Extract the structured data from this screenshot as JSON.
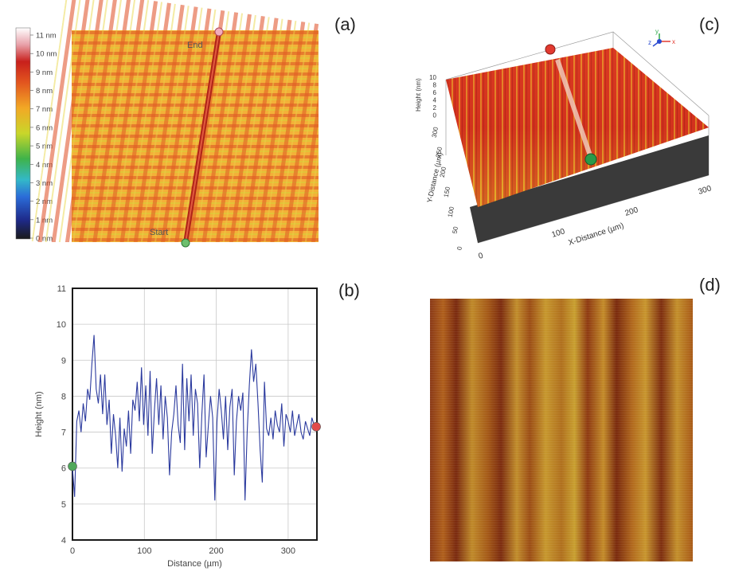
{
  "panel_labels": {
    "a": "(a)",
    "b": "(b)",
    "c": "(c)",
    "d": "(d)"
  },
  "colorbar": {
    "ticks": [
      "11 nm",
      "10 nm",
      "9 nm",
      "8 nm",
      "7 nm",
      "6 nm",
      "5 nm",
      "4 nm",
      "3 nm",
      "2 nm",
      "1 nm",
      "0 nm"
    ]
  },
  "height_map": {
    "start_label": "Start",
    "end_label": "End"
  },
  "view3d": {
    "z_label": "Height (nm)",
    "z_ticks": [
      "10",
      "8",
      "6",
      "4",
      "2",
      "0"
    ],
    "y_label": "Y-Distance (µm)",
    "y_ticks": [
      "300",
      "250",
      "200",
      "150",
      "100",
      "50",
      "0"
    ],
    "x_label": "X-Distance (µm)",
    "x_ticks": [
      "0",
      "100",
      "200",
      "300"
    ],
    "axis_x": "x",
    "axis_y": "y",
    "axis_z": "z"
  },
  "chart_data": {
    "type": "line",
    "xlabel": "Distance (µm)",
    "ylabel": "Height (nm)",
    "xlim": [
      0,
      340
    ],
    "ylim": [
      4,
      11
    ],
    "xticks": [
      0,
      100,
      200,
      300
    ],
    "yticks": [
      4,
      5,
      6,
      7,
      8,
      9,
      10,
      11
    ],
    "grid": true,
    "series": [
      {
        "color": "#2b3a9e",
        "x": [
          0,
          3,
          6,
          9,
          12,
          15,
          18,
          21,
          24,
          27,
          30,
          33,
          36,
          39,
          42,
          45,
          48,
          51,
          54,
          57,
          60,
          63,
          66,
          69,
          72,
          75,
          78,
          81,
          84,
          87,
          90,
          93,
          96,
          99,
          102,
          105,
          108,
          111,
          114,
          117,
          120,
          123,
          126,
          129,
          132,
          135,
          138,
          141,
          144,
          147,
          150,
          153,
          156,
          159,
          162,
          165,
          168,
          171,
          174,
          177,
          180,
          183,
          186,
          189,
          192,
          195,
          198,
          201,
          204,
          207,
          210,
          213,
          216,
          219,
          222,
          225,
          228,
          231,
          234,
          237,
          240,
          243,
          246,
          249,
          252,
          255,
          258,
          261,
          264,
          267,
          270,
          273,
          276,
          279,
          282,
          285,
          288,
          291,
          294,
          297,
          300,
          303,
          306,
          309,
          312,
          315,
          318,
          321,
          324,
          327,
          330,
          333,
          336,
          339
        ],
        "y": [
          6.0,
          5.2,
          7.3,
          7.6,
          7.0,
          7.8,
          7.3,
          8.2,
          7.9,
          8.9,
          9.7,
          8.2,
          7.8,
          8.6,
          7.5,
          8.6,
          7.2,
          7.9,
          6.4,
          7.5,
          6.9,
          6.0,
          7.4,
          5.9,
          7.1,
          6.6,
          7.6,
          6.4,
          7.9,
          7.6,
          8.4,
          7.3,
          8.8,
          7.2,
          8.3,
          6.9,
          8.7,
          6.4,
          7.6,
          8.5,
          7.2,
          8.3,
          6.8,
          8.0,
          7.4,
          5.8,
          7.0,
          7.5,
          8.3,
          7.2,
          6.7,
          8.9,
          6.5,
          8.5,
          7.3,
          8.6,
          6.9,
          8.2,
          7.8,
          6.0,
          7.5,
          8.6,
          6.3,
          7.2,
          8.0,
          7.4,
          5.1,
          7.3,
          8.2,
          7.6,
          6.8,
          8.0,
          6.5,
          7.7,
          8.2,
          5.8,
          7.3,
          8.0,
          7.6,
          8.1,
          5.1,
          7.0,
          8.3,
          9.3,
          8.4,
          8.9,
          7.8,
          6.5,
          5.6,
          8.4,
          7.1,
          6.9,
          7.4,
          6.8,
          7.6,
          7.2,
          7.0,
          7.8,
          6.6,
          7.5,
          7.3,
          7.0,
          7.6,
          6.9,
          7.2,
          7.5,
          7.0,
          6.8,
          7.3,
          7.1,
          6.9,
          7.4,
          7.2,
          7.1
        ]
      }
    ],
    "markers": [
      {
        "x": 0,
        "y": 6.05,
        "color": "#4fa85a"
      },
      {
        "x": 339,
        "y": 7.15,
        "color": "#e24b4b"
      }
    ]
  }
}
